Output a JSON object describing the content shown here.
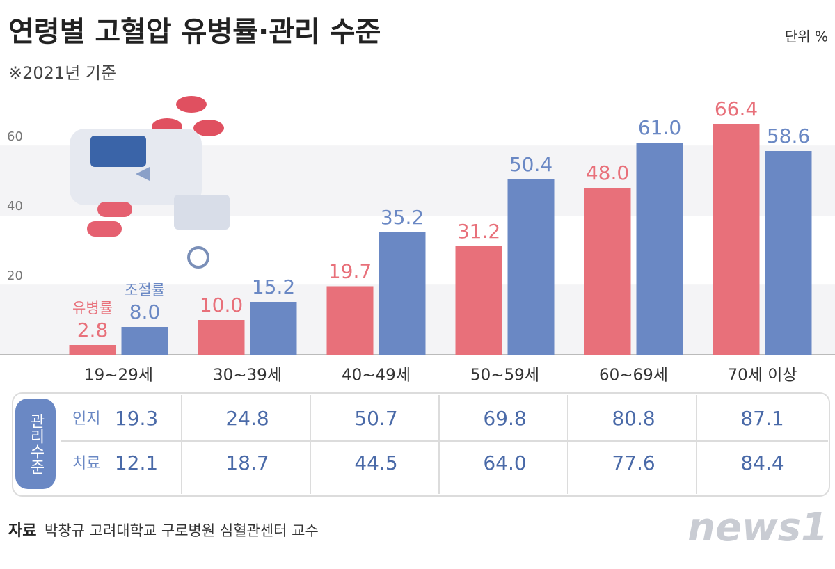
{
  "chart_data": {
    "type": "bar",
    "title": "연령별 고혈압 유병률·관리 수준",
    "subtitle": "※2021년 기준",
    "unit": "단위 %",
    "categories": [
      "19~29세",
      "30~39세",
      "40~49세",
      "50~59세",
      "60~69세",
      "70세 이상"
    ],
    "series": [
      {
        "name": "유병률",
        "color": "#e8707a",
        "values": [
          2.8,
          10.0,
          19.7,
          31.2,
          48.0,
          66.4
        ],
        "value_labels": [
          "2.8",
          "10.0",
          "19.7",
          "31.2",
          "48.0",
          "66.4"
        ]
      },
      {
        "name": "조절률",
        "color": "#6a88c4",
        "values": [
          8.0,
          15.2,
          35.2,
          50.4,
          61.0,
          58.6
        ],
        "value_labels": [
          "8.0",
          "15.2",
          "35.2",
          "50.4",
          "61.0",
          "58.6"
        ]
      }
    ],
    "ylim": [
      0,
      70
    ],
    "yticks": [
      20,
      40,
      60
    ],
    "grid": true
  },
  "management_table": {
    "label": "관리수준",
    "rows": [
      {
        "name": "인지",
        "values": [
          "19.3",
          "24.8",
          "50.7",
          "69.8",
          "80.8",
          "87.1"
        ]
      },
      {
        "name": "치료",
        "values": [
          "12.1",
          "18.7",
          "44.5",
          "64.0",
          "77.6",
          "84.4"
        ]
      }
    ]
  },
  "source": {
    "label": "자료",
    "text": "박창규 고려대학교 구로병원 심혈관센터 교수"
  },
  "logo": "news1"
}
